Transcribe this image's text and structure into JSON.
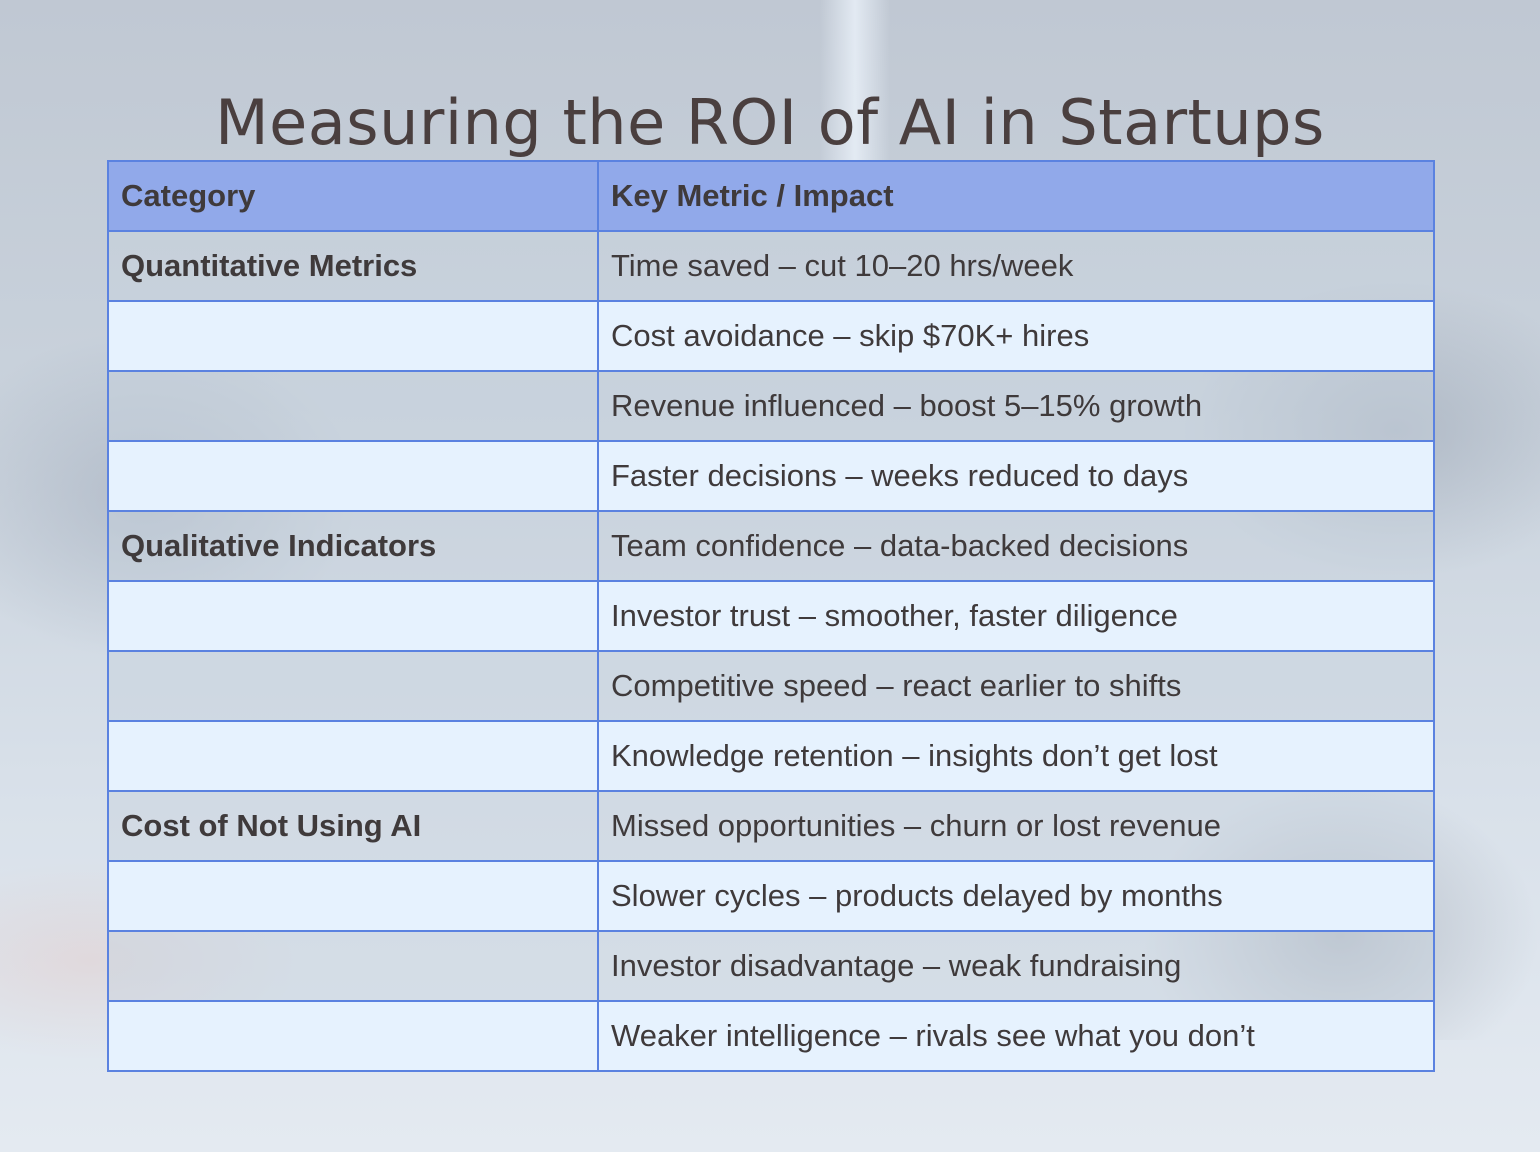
{
  "slide": {
    "title": "Measuring the ROI of AI in Startups",
    "colors": {
      "header_bg": "#91a9ea",
      "border": "#5b82e0",
      "row_light": "#e6f2fe",
      "text": "#3f3a3b"
    }
  },
  "table": {
    "headers": [
      "Category",
      "Key Metric / Impact"
    ],
    "rows": [
      {
        "category": "Quantitative Metrics",
        "metric": "Time saved – cut 10–20 hrs/week"
      },
      {
        "category": "",
        "metric": "Cost avoidance – skip $70K+ hires"
      },
      {
        "category": "",
        "metric": "Revenue influenced – boost 5–15% growth"
      },
      {
        "category": "",
        "metric": "Faster decisions – weeks reduced to days"
      },
      {
        "category": "Qualitative Indicators",
        "metric": "Team confidence – data-backed decisions"
      },
      {
        "category": "",
        "metric": "Investor trust – smoother, faster diligence"
      },
      {
        "category": "",
        "metric": "Competitive speed – react earlier to shifts"
      },
      {
        "category": "",
        "metric": "Knowledge retention – insights don’t get lost"
      },
      {
        "category": "Cost of Not Using AI",
        "metric": "Missed opportunities – churn or lost revenue"
      },
      {
        "category": "",
        "metric": "Slower cycles – products delayed by months"
      },
      {
        "category": "",
        "metric": "Investor disadvantage – weak fundraising"
      },
      {
        "category": "",
        "metric": "Weaker intelligence – rivals see what you don’t"
      }
    ]
  }
}
